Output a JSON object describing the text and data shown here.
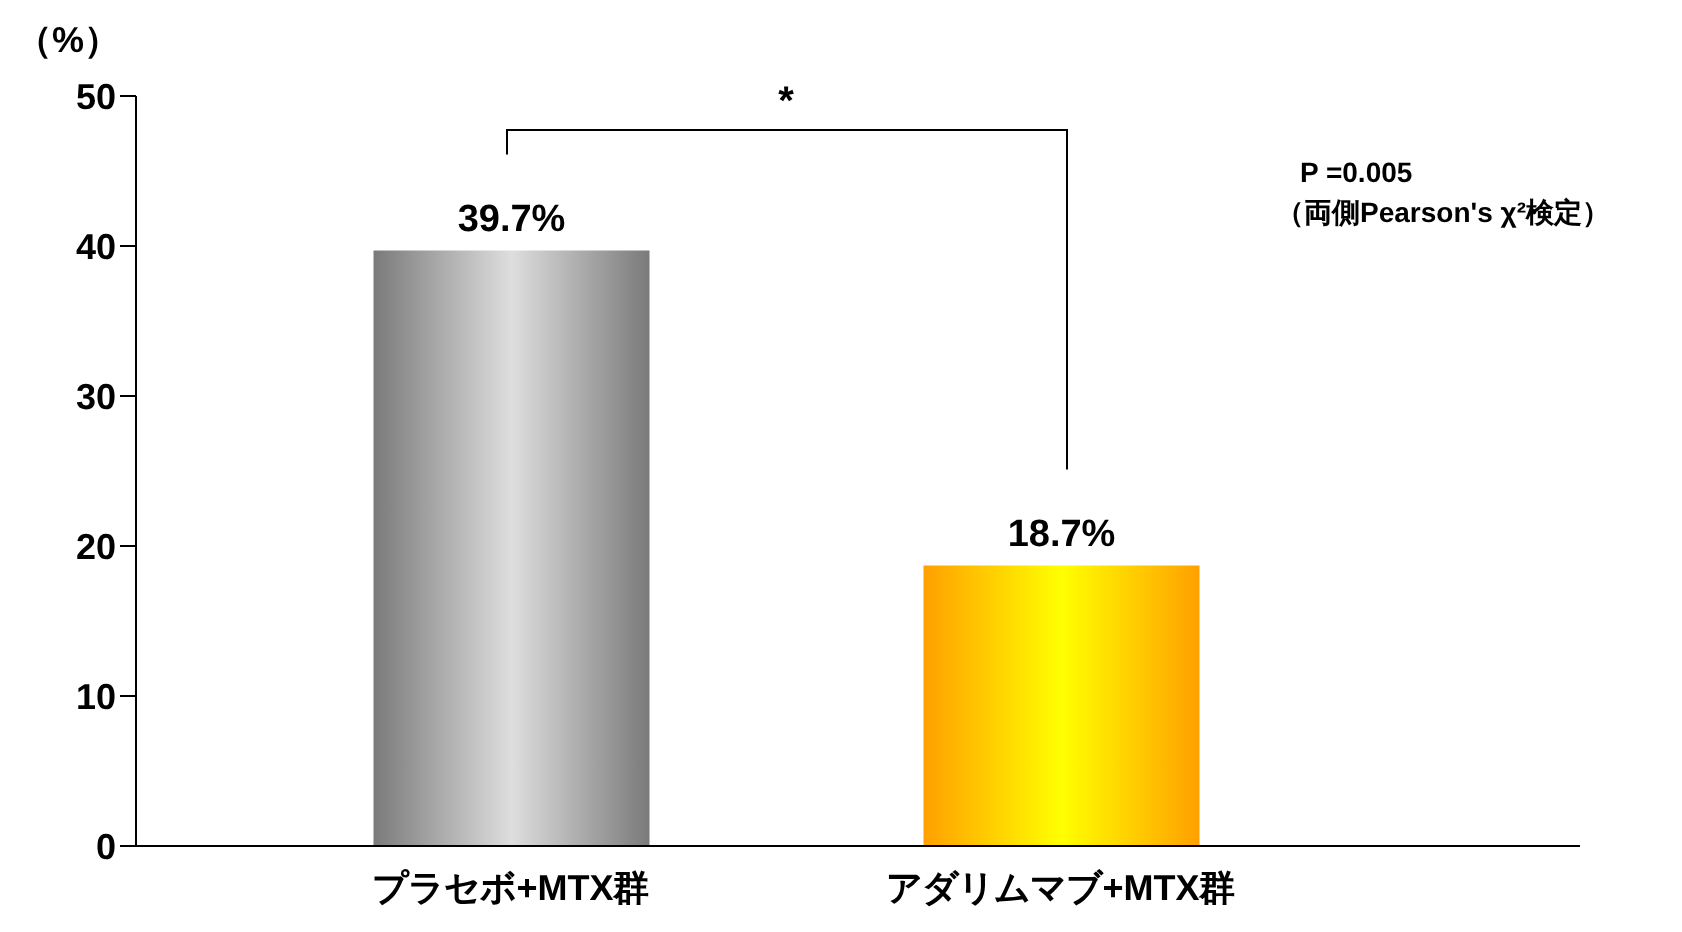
{
  "chart_data": {
    "type": "bar",
    "ylabel": "（%）",
    "categories": [
      "プラセボ+MTX群",
      "アダリムマブ+MTX群"
    ],
    "values": [
      39.7,
      18.7
    ],
    "colors": [
      "#7a7a7a",
      "#ffa000"
    ],
    "value_labels": [
      "39.7%",
      "18.7%"
    ],
    "ylim": [
      0,
      50
    ],
    "yticks": [
      0,
      10,
      20,
      30,
      40,
      50
    ],
    "annotations": [
      "*",
      "P =0.005",
      "（両側Pearson's χ²検定）"
    ]
  }
}
